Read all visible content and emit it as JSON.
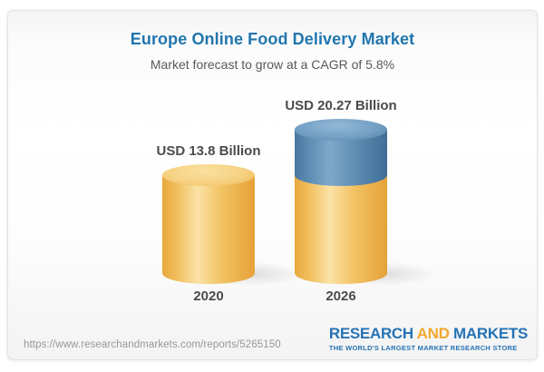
{
  "header": {
    "title": "Europe Online Food Delivery Market",
    "subtitle": "Market forecast to grow at a CAGR of 5.8%"
  },
  "chart_data": {
    "type": "bar",
    "subtype": "3d-cylinder",
    "categories": [
      "2020",
      "2026"
    ],
    "values": [
      13.8,
      20.27
    ],
    "value_labels": [
      "USD 13.8 Billion",
      "USD 20.27 Billion"
    ],
    "unit": "USD Billion",
    "cagr_percent": 5.8,
    "title": "Europe Online Food Delivery Market",
    "subtitle": "Market forecast to grow at a CAGR of 5.8%",
    "axes": "none",
    "gridlines": false,
    "data_labels": "above bars",
    "segment_note": "2026 cylinder shows the 2020 base level in yellow with the incremental growth segment (20.27 - 13.8) stacked on top in blue",
    "segment_colors": {
      "base": "#f2c363",
      "growth": "#5e8db3"
    }
  },
  "footer": {
    "url": "https://www.researchandmarkets.com/reports/5265150",
    "logo": {
      "research": "RESEARCH ",
      "and": "AND",
      "markets": " MARKETS",
      "tagline": "THE WORLD'S LARGEST MARKET RESEARCH STORE"
    }
  },
  "colors": {
    "title_blue": "#2176ae",
    "bar_yellow": "#f2c363",
    "bar_blue": "#5e8db3",
    "logo_blue": "#2673b5",
    "logo_orange": "#f3a72e"
  }
}
